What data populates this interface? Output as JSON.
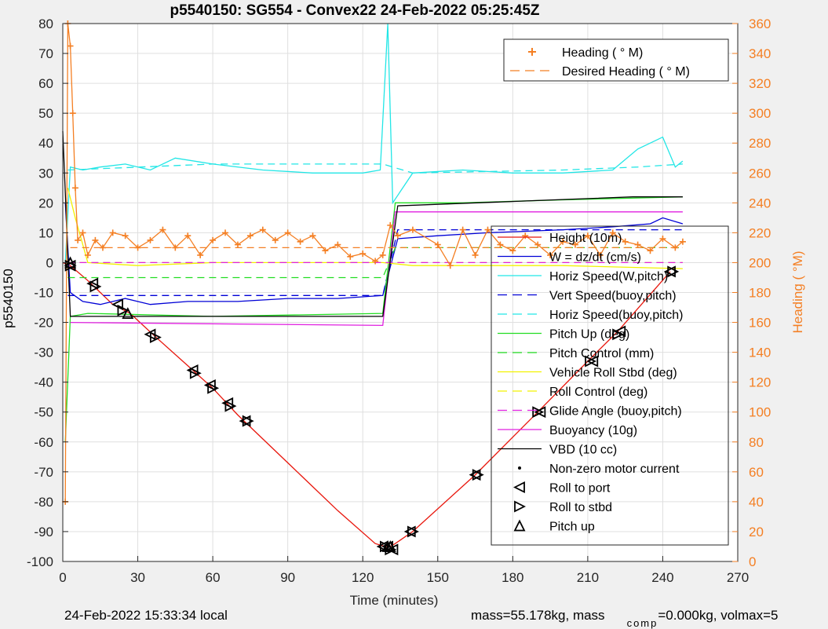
{
  "chart_data": {
    "type": "line",
    "title": "p5540150: SG554 - Convex22 24-Feb-2022 05:25:45Z",
    "xlabel": "Time (minutes)",
    "ylabel": "p5540150",
    "y2label": "Heading (  °M)",
    "xlim": [
      0,
      270
    ],
    "ylim": [
      -100,
      80
    ],
    "y2lim": [
      0,
      360
    ],
    "xticks": [
      0,
      30,
      60,
      90,
      120,
      150,
      180,
      210,
      240,
      270
    ],
    "yticks": [
      -100,
      -90,
      -80,
      -70,
      -60,
      -50,
      -40,
      -30,
      -20,
      -10,
      0,
      10,
      20,
      30,
      40,
      50,
      60,
      70,
      80
    ],
    "y2ticks": [
      0,
      20,
      40,
      60,
      80,
      100,
      120,
      140,
      160,
      180,
      200,
      220,
      240,
      260,
      280,
      300,
      320,
      340,
      360
    ],
    "grid": true,
    "legend_top": [
      {
        "label": "Heading (  ° M)",
        "color": "#f47f23",
        "style": "plus"
      },
      {
        "label": "Desired Heading (   ° M)",
        "color": "#f47f23",
        "style": "dashed"
      }
    ],
    "legend_main": [
      {
        "label": "Height (10m)",
        "color": "#e8160c",
        "style": "solid"
      },
      {
        "label": "W = dz/dt (cm/s)",
        "color": "#0000d6",
        "style": "solid"
      },
      {
        "label": "Horiz Speed(W,pitch)",
        "color": "#22e6e6",
        "style": "solid"
      },
      {
        "label": "Vert Speed(buoy,pitch)",
        "color": "#0000d6",
        "style": "dashed"
      },
      {
        "label": "Horiz Speed(buoy,pitch)",
        "color": "#22e6e6",
        "style": "dashed"
      },
      {
        "label": "Pitch Up (deg)",
        "color": "#22dd22",
        "style": "solid"
      },
      {
        "label": "Pitch Control (mm)",
        "color": "#22dd22",
        "style": "dashed"
      },
      {
        "label": "Vehicle Roll Stbd (deg)",
        "color": "#f2f200",
        "style": "solid"
      },
      {
        "label": "Roll Control (deg)",
        "color": "#f2f200",
        "style": "dashed"
      },
      {
        "label": "Glide Angle (buoy,pitch)",
        "color": "#e020e0",
        "style": "dashed"
      },
      {
        "label": "Buoyancy (10g)",
        "color": "#e020e0",
        "style": "solid"
      },
      {
        "label": "VBD (10 cc)",
        "color": "#000000",
        "style": "solid"
      },
      {
        "label": "Non-zero motor current",
        "color": "#000000",
        "style": "dot"
      },
      {
        "label": "Roll to port",
        "color": "#000000",
        "style": "tri-left"
      },
      {
        "label": "Roll to stbd",
        "color": "#000000",
        "style": "tri-right"
      },
      {
        "label": "Pitch up",
        "color": "#000000",
        "style": "tri-up"
      }
    ],
    "series": [
      {
        "name": "Height (10m)",
        "color": "#e8160c",
        "x": [
          0,
          3,
          10,
          20,
          27,
          36,
          52,
          60,
          70,
          90,
          110,
          125,
          129,
          131,
          133,
          140,
          165,
          190,
          210,
          222,
          243
        ],
        "y": [
          0,
          -1,
          -6,
          -14,
          -17,
          -24,
          -36,
          -42,
          -51,
          -67,
          -83,
          -94,
          -95,
          -95,
          -94,
          -90,
          -71,
          -50,
          -33,
          -23,
          -3
        ]
      },
      {
        "name": "W = dz/dt (cm/s)",
        "color": "#0000d6",
        "x": [
          1,
          3,
          8,
          15,
          25,
          35,
          50,
          70,
          90,
          110,
          128,
          134,
          150,
          170,
          200,
          220,
          235,
          240,
          248
        ],
        "y": [
          20,
          -10,
          -13,
          -14,
          -12,
          -14,
          -13,
          -13,
          -12,
          -12,
          -11,
          8,
          9,
          10,
          11,
          12,
          13,
          15,
          13
        ]
      },
      {
        "name": "Horiz Speed(W,pitch)",
        "color": "#22e6e6",
        "x": [
          1,
          3,
          8,
          15,
          25,
          35,
          45,
          60,
          80,
          100,
          120,
          127,
          130,
          132,
          140,
          160,
          180,
          200,
          220,
          230,
          240,
          245,
          248
        ],
        "y": [
          0,
          32,
          31,
          32,
          33,
          31,
          35,
          33,
          31,
          30,
          30,
          31,
          80,
          20,
          30,
          31,
          30,
          30,
          31,
          38,
          42,
          32,
          34
        ]
      },
      {
        "name": "Vert Speed(buoy,pitch)",
        "color": "#0000d6",
        "dashed": true,
        "x": [
          2,
          128,
          134,
          248
        ],
        "y": [
          -11,
          -11,
          11,
          11
        ]
      },
      {
        "name": "Horiz Speed(buoy,pitch)",
        "color": "#22e6e6",
        "dashed": true,
        "x": [
          2,
          60,
          128,
          140,
          200,
          230,
          248
        ],
        "y": [
          31,
          33,
          33,
          30,
          31,
          32,
          33
        ]
      },
      {
        "name": "Pitch Up (deg)",
        "color": "#22dd22",
        "x": [
          1,
          3,
          10,
          60,
          128,
          133,
          160,
          200,
          248
        ],
        "y": [
          -60,
          -18,
          -17,
          -18,
          -17,
          20,
          20,
          21,
          22
        ]
      },
      {
        "name": "Pitch Control (mm)",
        "color": "#22dd22",
        "dashed": true,
        "x": [
          2,
          128,
          133,
          248
        ],
        "y": [
          -5,
          -5,
          5,
          5
        ]
      },
      {
        "name": "Vehicle Roll Stbd (deg)",
        "color": "#f2f200",
        "x": [
          2,
          5,
          10,
          30,
          60,
          128,
          140,
          200,
          248
        ],
        "y": [
          25,
          15,
          0,
          -1,
          0,
          0,
          -1,
          -1,
          -2
        ]
      },
      {
        "name": "Roll Control (deg)",
        "color": "#f2f200",
        "dashed": true,
        "x": [
          2,
          248
        ],
        "y": [
          0,
          0
        ]
      },
      {
        "name": "Glide Angle (buoy,pitch)",
        "color": "#e020e0",
        "dashed": true,
        "x": [
          2,
          128,
          133,
          248
        ],
        "y": [
          0,
          0,
          0,
          0
        ]
      },
      {
        "name": "Buoyancy (10g)",
        "color": "#e020e0",
        "x": [
          3,
          128,
          133,
          248
        ],
        "y": [
          -20,
          -21,
          17,
          17
        ]
      },
      {
        "name": "VBD (10 cc)",
        "color": "#000000",
        "x": [
          0,
          3,
          128,
          134,
          228,
          248
        ],
        "y": [
          44,
          -18,
          -18,
          19,
          22,
          22
        ]
      },
      {
        "name": "Desired Heading (   ° M)",
        "color": "#f47f23",
        "dashed": true,
        "axis": "right",
        "x": [
          3,
          248
        ],
        "y": [
          210,
          210
        ]
      },
      {
        "name": "Heading (  ° M)",
        "color": "#f47f23",
        "axis": "right",
        "marker": "plus",
        "x": [
          1,
          2,
          3,
          4,
          5,
          6,
          8,
          10,
          13,
          16,
          20,
          25,
          30,
          35,
          40,
          45,
          50,
          55,
          60,
          65,
          70,
          75,
          80,
          85,
          90,
          95,
          100,
          105,
          110,
          115,
          120,
          125,
          128,
          131,
          134,
          140,
          150,
          155,
          160,
          165,
          170,
          175,
          180,
          185,
          190,
          195,
          200,
          205,
          210,
          215,
          220,
          225,
          230,
          235,
          240,
          245,
          248
        ],
        "y": [
          40,
          360,
          345,
          300,
          250,
          215,
          220,
          205,
          215,
          210,
          220,
          218,
          210,
          215,
          222,
          210,
          218,
          205,
          215,
          220,
          212,
          218,
          222,
          215,
          220,
          214,
          218,
          208,
          212,
          204,
          206,
          201,
          205,
          225,
          218,
          222,
          212,
          198,
          222,
          205,
          222,
          212,
          208,
          218,
          212,
          205,
          214,
          212,
          218,
          205,
          220,
          214,
          212,
          208,
          216,
          210,
          214
        ]
      }
    ],
    "markers": {
      "roll_to_port": [
        [
          3,
          -1
        ],
        [
          12,
          -7
        ],
        [
          22,
          -14
        ],
        [
          35,
          -24
        ],
        [
          52,
          -36
        ],
        [
          59,
          -41
        ],
        [
          66,
          -47
        ],
        [
          73,
          -53
        ],
        [
          128,
          -95
        ],
        [
          130,
          -95
        ],
        [
          132,
          -96
        ],
        [
          139,
          -90
        ],
        [
          165,
          -71
        ],
        [
          191,
          -50
        ],
        [
          212,
          -33
        ],
        [
          223,
          -23
        ],
        [
          243,
          -3
        ]
      ],
      "roll_to_stbd": [
        [
          3,
          -1
        ],
        [
          13,
          -8
        ],
        [
          24,
          -16
        ],
        [
          37,
          -25
        ],
        [
          53,
          -37
        ],
        [
          60,
          -42
        ],
        [
          67,
          -48
        ],
        [
          74,
          -53
        ],
        [
          129,
          -95
        ],
        [
          131,
          -96
        ],
        [
          140,
          -90
        ],
        [
          166,
          -71
        ],
        [
          190,
          -50
        ],
        [
          211,
          -33
        ],
        [
          222,
          -24
        ],
        [
          244,
          -3
        ]
      ],
      "pitch_up": [
        [
          3,
          0
        ],
        [
          26,
          -17
        ],
        [
          130,
          -95
        ],
        [
          131,
          -95
        ]
      ]
    }
  },
  "footer": {
    "local_time": "24-Feb-2022 15:33:34 local",
    "mass": "mass=55.178kg, mass",
    "comp_sub": "comp",
    "mass_rest": "=0.000kg, volmax=5"
  }
}
